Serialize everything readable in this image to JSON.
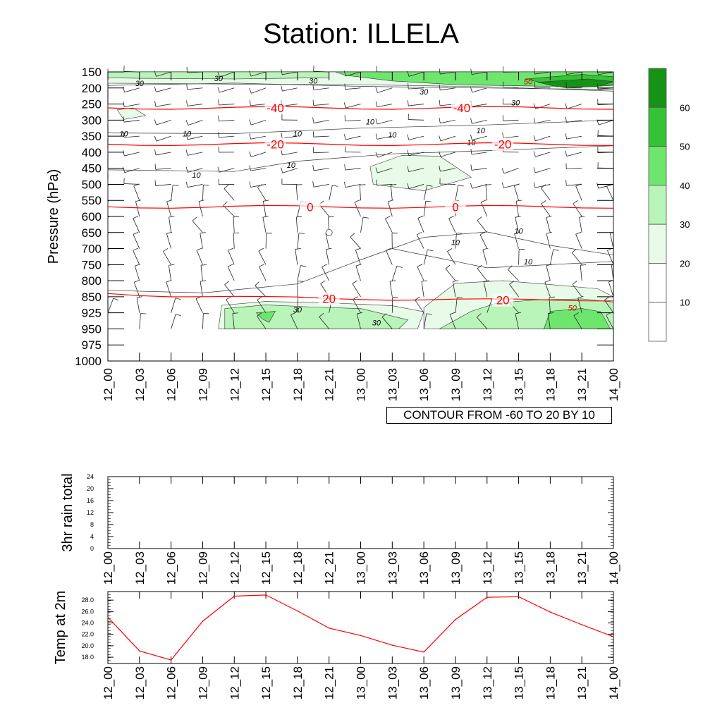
{
  "title": "Station: ILLELA",
  "contour_note": "CONTOUR FROM -60 TO 20 BY 10",
  "time_labels": [
    "12_00",
    "12_03",
    "12_06",
    "12_09",
    "12_12",
    "12_15",
    "12_18",
    "12_21",
    "13_00",
    "13_03",
    "13_06",
    "13_09",
    "13_12",
    "13_15",
    "13_18",
    "13_21",
    "14_00"
  ],
  "colorbar": {
    "labels": [
      "60",
      "50",
      "40",
      "30",
      "20",
      "10"
    ],
    "colors": [
      "#169216",
      "#36c236",
      "#6ee66e",
      "#b9f4b9",
      "#e8fbe8",
      "#ffffff",
      "#ffffff"
    ]
  },
  "chart_data": [
    {
      "type": "contour",
      "title": "Station: ILLELA",
      "ylabel": "Pressure (hPa)",
      "xlabel": "",
      "y_ticks": [
        "150",
        "200",
        "250",
        "300",
        "350",
        "400",
        "450",
        "500",
        "550",
        "600",
        "650",
        "700",
        "750",
        "800",
        "850",
        "925",
        "950",
        "975",
        "1000"
      ],
      "x_ticks": [
        "12_00",
        "12_03",
        "12_06",
        "12_09",
        "12_12",
        "12_15",
        "12_18",
        "12_21",
        "13_00",
        "13_03",
        "13_06",
        "13_09",
        "13_12",
        "13_15",
        "13_18",
        "13_21",
        "14_00"
      ],
      "temperature_contours": [
        {
          "label": "-40",
          "levels": [
            262,
            262,
            262,
            262,
            262,
            262,
            262,
            262,
            262,
            262,
            262,
            262,
            262,
            262,
            262,
            262,
            262
          ],
          "label_texts": [
            "-40",
            "-40"
          ]
        },
        {
          "label": "-20",
          "levels": [
            375,
            375,
            375,
            375,
            375,
            375,
            375,
            375,
            375,
            375,
            375,
            375,
            375,
            375,
            375,
            375,
            375
          ],
          "label_texts": [
            "-20",
            "-20"
          ]
        },
        {
          "label": "0",
          "levels": [
            570,
            570,
            570,
            570,
            570,
            570,
            570,
            570,
            570,
            570,
            570,
            570,
            570,
            570,
            570,
            570,
            570
          ],
          "label_texts": [
            "0",
            "0"
          ]
        },
        {
          "label": "20",
          "levels": [
            840,
            843,
            846,
            848,
            851,
            855,
            856,
            858,
            858,
            860,
            862,
            864,
            866,
            866,
            865,
            864,
            863
          ],
          "label_texts": [
            "20",
            "20"
          ]
        }
      ],
      "wind_speed_labels": [
        "10",
        "10",
        "10",
        "10",
        "10",
        "10",
        "10",
        "10",
        "10",
        "10",
        "10",
        "10",
        "30",
        "30",
        "30",
        "30",
        "30",
        "30",
        "30",
        "50",
        "50"
      ],
      "shading_levels": [
        10,
        20,
        30,
        40,
        50,
        60
      ]
    },
    {
      "type": "line",
      "ylabel": "3hr rain total",
      "x": [
        "12_00",
        "12_03",
        "12_06",
        "12_09",
        "12_12",
        "12_15",
        "12_18",
        "12_21",
        "13_00",
        "13_03",
        "13_06",
        "13_09",
        "13_12",
        "13_15",
        "13_18",
        "13_21",
        "14_00"
      ],
      "y_ticks": [
        "0",
        "4",
        "8",
        "12",
        "16",
        "20",
        "24"
      ],
      "ylim": [
        0,
        24
      ],
      "series": [
        {
          "name": "rain",
          "values": [
            0,
            0,
            0,
            0,
            0,
            0,
            0,
            0,
            0,
            0,
            0,
            0,
            0,
            0,
            0,
            0,
            0
          ]
        }
      ]
    },
    {
      "type": "line",
      "ylabel": "Temp at 2m",
      "x": [
        "12_00",
        "12_03",
        "12_06",
        "12_09",
        "12_12",
        "12_15",
        "12_18",
        "12_21",
        "13_00",
        "13_03",
        "13_06",
        "13_09",
        "13_12",
        "13_15",
        "13_18",
        "13_21",
        "14_00"
      ],
      "y_ticks": [
        "18.0",
        "20.0",
        "22.0",
        "24.0",
        "26.0",
        "28.0"
      ],
      "ylim": [
        16.9,
        29.5
      ],
      "series": [
        {
          "name": "t2m",
          "color": "#ff0000",
          "values": [
            25.0,
            19.1,
            17.5,
            24.3,
            28.7,
            28.9,
            26.1,
            23.1,
            21.8,
            20.1,
            18.9,
            24.6,
            28.5,
            28.6,
            25.9,
            23.7,
            21.6
          ]
        }
      ]
    }
  ]
}
